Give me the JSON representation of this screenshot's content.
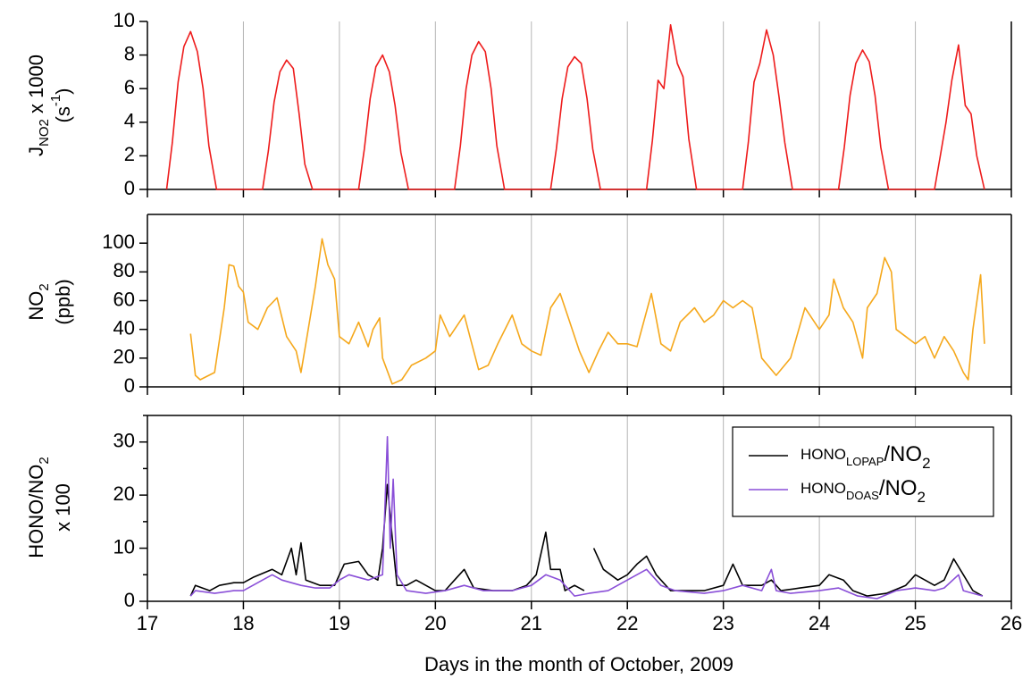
{
  "chart_data": [
    {
      "type": "line",
      "ylabel": [
        [
          "J",
          "NO2",
          " x 1000"
        ],
        [
          "(s",
          "-1",
          ")"
        ]
      ],
      "xlim": [
        17,
        26
      ],
      "xticks": [
        17,
        18,
        19,
        20,
        21,
        22,
        23,
        24,
        25,
        26
      ],
      "ylim": [
        0,
        10
      ],
      "yticks": [
        0,
        2,
        4,
        6,
        8,
        10
      ],
      "grid": true,
      "series": [
        {
          "color": "#ee1c1c",
          "x": [
            17.2,
            17.26,
            17.32,
            17.38,
            17.45,
            17.52,
            17.58,
            17.64,
            17.72,
            18.2,
            18.26,
            18.32,
            18.38,
            18.45,
            18.52,
            18.58,
            18.64,
            18.72,
            19.2,
            19.26,
            19.32,
            19.38,
            19.45,
            19.52,
            19.58,
            19.64,
            19.72,
            20.2,
            20.26,
            20.32,
            20.38,
            20.45,
            20.52,
            20.58,
            20.64,
            20.72,
            21.2,
            21.26,
            21.32,
            21.38,
            21.45,
            21.52,
            21.58,
            21.64,
            21.72,
            22.2,
            22.26,
            22.32,
            22.38,
            22.45,
            22.52,
            22.58,
            22.64,
            22.72,
            23.2,
            23.26,
            23.32,
            23.38,
            23.45,
            23.52,
            23.58,
            23.64,
            23.72,
            24.2,
            24.26,
            24.32,
            24.38,
            24.45,
            24.52,
            24.58,
            24.64,
            24.72,
            25.2,
            25.26,
            25.32,
            25.38,
            25.45,
            25.52,
            25.58,
            25.64,
            25.72
          ],
          "values": [
            0,
            2.8,
            6.4,
            8.5,
            9.4,
            8.2,
            6.0,
            2.6,
            0,
            0,
            2.3,
            5.2,
            7.0,
            7.7,
            7.2,
            4.5,
            1.5,
            0,
            0,
            2.4,
            5.4,
            7.3,
            8.0,
            7.0,
            5.0,
            2.2,
            0,
            0,
            2.6,
            6.0,
            8.0,
            8.8,
            8.2,
            6.0,
            2.6,
            0,
            0,
            2.4,
            5.4,
            7.3,
            7.9,
            7.5,
            5.4,
            2.4,
            0,
            0,
            2.9,
            6.5,
            6.0,
            9.8,
            7.5,
            6.7,
            3.0,
            0,
            0,
            2.8,
            6.4,
            7.5,
            9.5,
            8.0,
            5.5,
            2.8,
            0,
            0,
            2.5,
            5.6,
            7.5,
            8.3,
            7.6,
            5.6,
            2.5,
            0,
            0,
            2.0,
            4.0,
            6.5,
            8.6,
            5.0,
            4.5,
            2.0,
            0
          ]
        }
      ]
    },
    {
      "type": "line",
      "ylabel": [
        [
          "NO",
          "2"
        ],
        [
          "(ppb)"
        ]
      ],
      "xlim": [
        17,
        26
      ],
      "xticks": [
        17,
        18,
        19,
        20,
        21,
        22,
        23,
        24,
        25,
        26
      ],
      "ylim": [
        0,
        120
      ],
      "yticks": [
        0,
        20,
        40,
        60,
        80,
        100
      ],
      "grid": true,
      "series": [
        {
          "color": "#f5a81c",
          "x": [
            17.45,
            17.5,
            17.55,
            17.7,
            17.8,
            17.85,
            17.9,
            17.95,
            18.0,
            18.05,
            18.15,
            18.25,
            18.35,
            18.45,
            18.55,
            18.6,
            18.65,
            18.75,
            18.82,
            18.88,
            18.95,
            19.0,
            19.1,
            19.2,
            19.3,
            19.35,
            19.42,
            19.45,
            19.55,
            19.65,
            19.75,
            19.9,
            20.0,
            20.05,
            20.15,
            20.3,
            20.45,
            20.55,
            20.65,
            20.8,
            20.9,
            21.0,
            21.1,
            21.2,
            21.3,
            21.4,
            21.5,
            21.6,
            21.7,
            21.8,
            21.9,
            22.0,
            22.1,
            22.25,
            22.35,
            22.45,
            22.55,
            22.7,
            22.8,
            22.9,
            23.0,
            23.1,
            23.2,
            23.3,
            23.4,
            23.55,
            23.7,
            23.85,
            23.95,
            24.0,
            24.1,
            24.15,
            24.25,
            24.35,
            24.45,
            24.5,
            24.6,
            24.68,
            24.75,
            24.8,
            24.9,
            25.0,
            25.1,
            25.2,
            25.3,
            25.4,
            25.5,
            25.55,
            25.6,
            25.68,
            25.72
          ],
          "values": [
            37,
            8,
            5,
            10,
            55,
            85,
            84,
            70,
            66,
            45,
            40,
            55,
            62,
            35,
            25,
            10,
            30,
            70,
            103,
            85,
            75,
            35,
            30,
            45,
            28,
            40,
            48,
            20,
            2,
            5,
            15,
            20,
            25,
            50,
            35,
            50,
            12,
            15,
            30,
            50,
            30,
            25,
            22,
            55,
            65,
            45,
            25,
            10,
            25,
            38,
            30,
            30,
            28,
            65,
            30,
            25,
            45,
            55,
            45,
            50,
            60,
            55,
            60,
            55,
            20,
            8,
            20,
            55,
            45,
            40,
            50,
            75,
            55,
            45,
            20,
            55,
            65,
            90,
            80,
            40,
            35,
            30,
            35,
            20,
            35,
            25,
            10,
            5,
            40,
            78,
            30
          ]
        }
      ]
    },
    {
      "type": "line",
      "ylabel": [
        [
          "HONO/NO",
          "2"
        ],
        [
          "x 100"
        ]
      ],
      "xlim": [
        17,
        26
      ],
      "xticks": [
        17,
        18,
        19,
        20,
        21,
        22,
        23,
        24,
        25,
        26
      ],
      "xlabel": "Days in the month of October, 2009",
      "ylim": [
        0,
        35
      ],
      "yticks": [
        0,
        10,
        20,
        30
      ],
      "yminor": [
        5,
        15,
        25,
        35
      ],
      "grid": true,
      "legend": "upper right",
      "series": [
        {
          "name": [
            "HONO",
            "LOPAP",
            "/NO",
            "2"
          ],
          "color": "#000000",
          "x": [
            17.45,
            17.5,
            17.65,
            17.75,
            17.9,
            18.0,
            18.1,
            18.3,
            18.4,
            18.5,
            18.55,
            18.6,
            18.65,
            18.8,
            18.95,
            19.05,
            19.2,
            19.3,
            19.4,
            19.45,
            19.5,
            19.55,
            19.6,
            19.7,
            19.8,
            19.9,
            20.0,
            20.1,
            20.2,
            20.3,
            20.4,
            20.6,
            20.8,
            20.95,
            21.05,
            21.15,
            21.2,
            21.3,
            21.35,
            21.45,
            21.55,
            21.6,
            21.65,
            21.75,
            21.9,
            22.0,
            22.1,
            22.2,
            22.3,
            22.45,
            22.6,
            22.8,
            23.0,
            23.1,
            23.2,
            23.4,
            23.5,
            23.6,
            23.8,
            24.0,
            24.1,
            24.25,
            24.35,
            24.5,
            24.7,
            24.9,
            25.0,
            25.1,
            25.2,
            25.3,
            25.4,
            25.5,
            25.6,
            25.7
          ],
          "values": [
            1,
            3,
            2,
            3,
            3.5,
            3.5,
            4.5,
            6,
            5,
            10,
            5,
            11,
            4,
            3,
            3,
            7,
            7.5,
            5,
            4,
            10,
            22,
            12,
            3,
            3,
            4,
            3,
            2,
            2,
            4,
            6,
            2.5,
            2,
            2,
            3,
            5,
            13,
            6,
            6,
            2,
            3,
            2,
            null,
            10,
            6,
            4,
            5,
            7,
            8.5,
            5,
            2,
            2,
            2,
            3,
            7,
            3,
            3,
            4,
            2,
            2.5,
            3,
            5,
            4,
            2,
            1,
            1.5,
            3,
            5,
            4,
            3,
            4,
            8,
            5,
            2,
            1
          ]
        },
        {
          "name": [
            "HONO",
            "DOAS",
            "/NO",
            "2"
          ],
          "color": "#8a4fd8",
          "x": [
            17.45,
            17.5,
            17.7,
            17.9,
            18.0,
            18.2,
            18.3,
            18.4,
            18.6,
            18.75,
            18.9,
            19.0,
            19.1,
            19.3,
            19.45,
            19.5,
            19.53,
            19.56,
            19.6,
            19.7,
            19.9,
            20.1,
            20.3,
            20.5,
            20.8,
            21.0,
            21.15,
            21.3,
            21.45,
            21.6,
            21.8,
            22.0,
            22.2,
            22.35,
            22.5,
            22.8,
            23.0,
            23.2,
            23.4,
            23.5,
            23.55,
            23.7,
            24.0,
            24.2,
            24.4,
            24.6,
            24.8,
            25.0,
            25.2,
            25.3,
            25.45,
            25.5,
            25.7
          ],
          "values": [
            1,
            2,
            1.5,
            2,
            2,
            4,
            5,
            4,
            3,
            2.5,
            2.5,
            4,
            5,
            4,
            5,
            31,
            10,
            23,
            5,
            2,
            1.5,
            2,
            3,
            2,
            2,
            3,
            5,
            4,
            1,
            1.5,
            2,
            4,
            6,
            3,
            2,
            1.5,
            2,
            3,
            2,
            6,
            2,
            1.5,
            2,
            2.5,
            1,
            0.5,
            2,
            2.5,
            2,
            2.5,
            5,
            2,
            1
          ]
        }
      ]
    }
  ]
}
